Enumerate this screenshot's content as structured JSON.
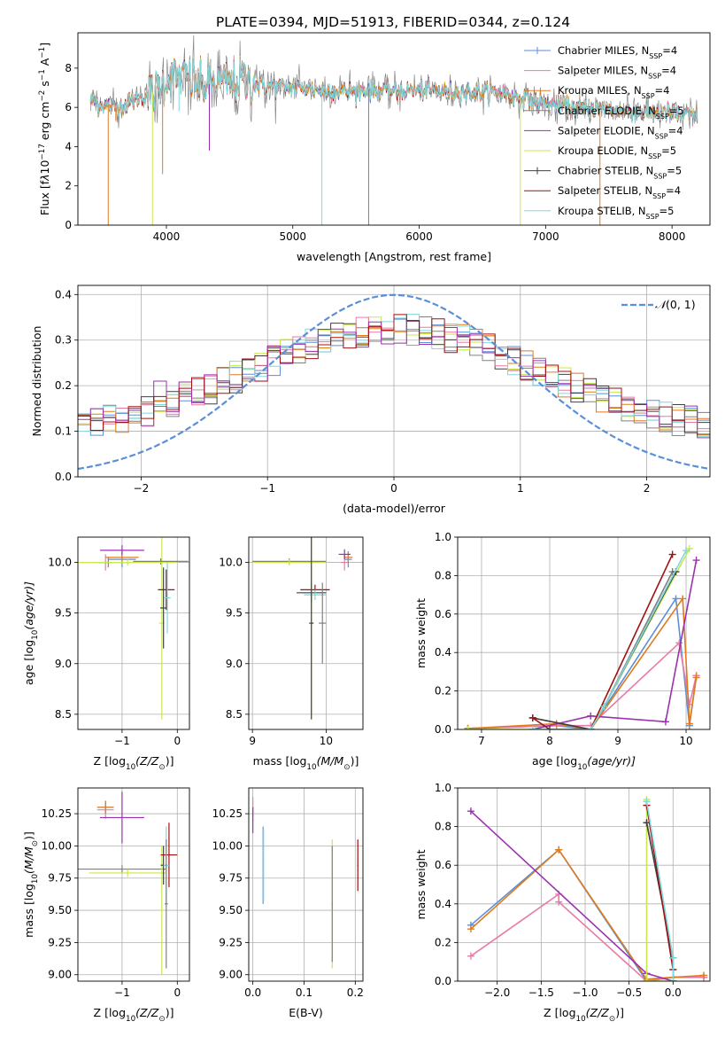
{
  "colors": {
    "c_miles": "#5b8fd8",
    "s_miles": "#e87aa8",
    "k_miles": "#e07b1c",
    "c_elodie": "#808080",
    "s_elodie": "#9b30b0",
    "k_elodie": "#c8e84c",
    "c_stelib": "#404040",
    "s_stelib": "#a01010",
    "k_stelib": "#7fd8dc",
    "normal": "#5b8fd8",
    "grid": "#b0b0b0"
  },
  "chart_data": [
    {
      "id": "spectrum",
      "type": "line",
      "title": "PLATE=0394, MJD=51913, FIBERID=0344, z=0.124",
      "xlabel": "wavelength [Angstrom, rest frame]",
      "ylabel_parts": [
        "Flux [f",
        "λ",
        "10",
        "−17",
        " erg cm",
        "−2",
        " s",
        "−1",
        " A",
        "−1",
        "]"
      ],
      "xlim": [
        3300,
        8300
      ],
      "ylim": [
        0,
        9.8
      ],
      "xticks": [
        4000,
        5000,
        6000,
        7000,
        8000
      ],
      "yticks": [
        0,
        2,
        4,
        6,
        8
      ],
      "grid": false,
      "legend_position": "top-right",
      "series": [
        {
          "name": "Chabrier MILES",
          "nssp": "4",
          "color_key": "c_miles"
        },
        {
          "name": "Salpeter MILES",
          "nssp": "4",
          "color_key": "s_miles"
        },
        {
          "name": "Kroupa MILES",
          "nssp": "4",
          "color_key": "k_miles"
        },
        {
          "name": "Chabrier ELODIE",
          "nssp": "5",
          "color_key": "c_elodie"
        },
        {
          "name": "Salpeter ELODIE",
          "nssp": "4",
          "color_key": "s_elodie"
        },
        {
          "name": "Kroupa ELODIE",
          "nssp": "5",
          "color_key": "k_elodie"
        },
        {
          "name": "Chabrier STELIB",
          "nssp": "5",
          "color_key": "c_stelib"
        },
        {
          "name": "Salpeter STELIB",
          "nssp": "4",
          "color_key": "s_stelib"
        },
        {
          "name": "Kroupa STELIB",
          "nssp": "5",
          "color_key": "k_stelib"
        }
      ],
      "continuum": {
        "x": [
          3400,
          3500,
          3600,
          3700,
          3800,
          3900,
          4000,
          4100,
          4200,
          4300,
          4400,
          4600,
          4800,
          5000,
          5200,
          5400,
          5600,
          5800,
          6000,
          6200,
          6400,
          6600,
          6800,
          7000,
          7200,
          7400,
          7600,
          7800,
          8000,
          8200
        ],
        "y": [
          6.4,
          6.1,
          6.0,
          6.2,
          6.5,
          6.8,
          7.4,
          7.6,
          7.4,
          7.1,
          7.3,
          7.3,
          7.1,
          7.0,
          6.9,
          6.8,
          6.9,
          6.8,
          6.9,
          6.8,
          6.8,
          6.8,
          6.5,
          6.2,
          6.0,
          5.9,
          5.8,
          5.7,
          5.7,
          5.5
        ]
      },
      "absorption_dips": [
        {
          "x": 3540,
          "y": 0.0
        },
        {
          "x": 3600,
          "y": 5.3
        },
        {
          "x": 3890,
          "y": 0.0
        },
        {
          "x": 3970,
          "y": 2.6
        },
        {
          "x": 4100,
          "y": 5.8
        },
        {
          "x": 4340,
          "y": 3.8
        },
        {
          "x": 5230,
          "y": 0.0
        },
        {
          "x": 5600,
          "y": 0.0
        },
        {
          "x": 6800,
          "y": 0.0
        },
        {
          "x": 7430,
          "y": 0.0
        }
      ]
    },
    {
      "id": "residuals",
      "type": "line",
      "xlabel": "(data-model)/error",
      "ylabel": "Normed distribution",
      "xlim": [
        -2.5,
        2.5
      ],
      "ylim": [
        0,
        0.42
      ],
      "xticks": [
        -2,
        -1,
        0,
        1,
        2
      ],
      "yticks": [
        0.0,
        0.1,
        0.2,
        0.3,
        0.4
      ],
      "grid": true,
      "legend_position": "top-right",
      "reference_curve": {
        "name_base": "𝒩",
        "name_args": "(0, 1)",
        "mean": 0,
        "sigma": 1
      },
      "histogram_bins": 50
    },
    {
      "id": "age_vs_Z",
      "type": "scatter",
      "xlabel_parts": [
        "Z [log",
        "10",
        "(Z/Z",
        "⊙",
        ")]"
      ],
      "ylabel_parts": [
        "age  [log",
        "10",
        "(age/yr)]"
      ],
      "xlim": [
        -1.8,
        0.22
      ],
      "ylim": [
        8.35,
        10.25
      ],
      "xticks": [
        -1,
        0
      ],
      "yticks": [
        8.5,
        9.0,
        9.5,
        10.0
      ],
      "grid": true,
      "points": [
        {
          "c": "c_miles",
          "x": -1.0,
          "xerr": 0.25,
          "y": 10.03,
          "yerr": 0.08
        },
        {
          "c": "s_miles",
          "x": -1.3,
          "xerr": 0.12,
          "y": 10.0,
          "yerr": 0.08
        },
        {
          "c": "k_miles",
          "x": -1.0,
          "xerr": 0.3,
          "y": 10.05,
          "yerr": 0.05
        },
        {
          "c": "c_elodie",
          "x": -1.25,
          "xerr": 0.5,
          "y": 10.0,
          "yerr": 0.05
        },
        {
          "c": "s_elodie",
          "x": -1.0,
          "xerr": 0.4,
          "y": 10.12,
          "yerr": 0.05
        },
        {
          "c": "k_elodie",
          "x": -0.28,
          "xerr": 0.05,
          "y": 9.4,
          "yerr": 0.95
        },
        {
          "c": "c_stelib",
          "x": -0.25,
          "xerr": 0.06,
          "y": 9.55,
          "yerr": 0.4
        },
        {
          "c": "s_stelib",
          "x": -0.2,
          "xerr": 0.15,
          "y": 9.73,
          "yerr": 0.2
        },
        {
          "c": "k_stelib",
          "x": -0.18,
          "xerr": 0.06,
          "y": 9.65,
          "yerr": 0.35
        },
        {
          "c": "c_elodie",
          "x": -0.3,
          "xerr": 0.5,
          "y": 10.01,
          "yerr": 0.03
        },
        {
          "c": "k_elodie",
          "x": -0.9,
          "xerr": 0.9,
          "y": 10.0,
          "yerr": 0.03
        }
      ]
    },
    {
      "id": "age_vs_mass",
      "type": "scatter",
      "xlabel_parts": [
        "mass [log",
        "10",
        "(M/M",
        "⊙",
        ")]"
      ],
      "xlim": [
        8.95,
        10.5
      ],
      "ylim": [
        8.35,
        10.25
      ],
      "xticks": [
        9,
        10
      ],
      "yticks": [
        8.5,
        9.0,
        9.5,
        10.0
      ],
      "grid": true,
      "points": [
        {
          "c": "c_miles",
          "x": 10.3,
          "xerr": 0.05,
          "y": 10.03,
          "yerr": 0.08
        },
        {
          "c": "s_miles",
          "x": 10.25,
          "xerr": 0.05,
          "y": 10.0,
          "yerr": 0.08
        },
        {
          "c": "k_miles",
          "x": 10.3,
          "xerr": 0.06,
          "y": 10.05,
          "yerr": 0.05
        },
        {
          "c": "c_elodie",
          "x": 9.5,
          "xerr": 0.5,
          "y": 10.01,
          "yerr": 0.03
        },
        {
          "c": "s_elodie",
          "x": 10.25,
          "xerr": 0.08,
          "y": 10.08,
          "yerr": 0.05
        },
        {
          "c": "k_elodie",
          "x": 9.5,
          "xerr": 0.5,
          "y": 10.0,
          "yerr": 0.03
        },
        {
          "c": "c_stelib",
          "x": 9.8,
          "xerr": 0.2,
          "y": 9.7,
          "yerr": 0.1
        },
        {
          "c": "s_stelib",
          "x": 9.85,
          "xerr": 0.2,
          "y": 9.73,
          "yerr": 0.05
        },
        {
          "c": "k_stelib",
          "x": 9.85,
          "xerr": 0.15,
          "y": 9.68,
          "yerr": 0.05
        },
        {
          "c": "c_elodie",
          "x": 9.95,
          "xerr": 0.05,
          "y": 9.4,
          "yerr": 0.4
        },
        {
          "c": "k_elodie",
          "x": 9.8,
          "xerr": 0.03,
          "y": 9.4,
          "yerr": 0.95
        },
        {
          "c": "c_stelib",
          "x": 9.8,
          "xerr": 0.03,
          "y": 9.4,
          "yerr": 0.95
        }
      ]
    },
    {
      "id": "weight_vs_age",
      "type": "line",
      "xlabel_parts": [
        "age  [log",
        "10",
        "(age/yr)]"
      ],
      "ylabel": "mass weight",
      "xlim": [
        6.65,
        10.35
      ],
      "ylim": [
        0,
        1.0
      ],
      "xticks": [
        7,
        8,
        9,
        10
      ],
      "yticks": [
        0.0,
        0.2,
        0.4,
        0.6,
        0.8,
        1.0
      ],
      "grid": true,
      "series": [
        {
          "c": "c_miles",
          "x": [
            6.8,
            8.1,
            8.6,
            9.85,
            10.05,
            10.15
          ],
          "y": [
            0.005,
            0.02,
            0.0,
            0.68,
            0.02,
            0.28
          ]
        },
        {
          "c": "s_miles",
          "x": [
            6.8,
            8.1,
            8.6,
            9.9,
            10.05,
            10.15
          ],
          "y": [
            0.005,
            0.02,
            0.02,
            0.45,
            0.13,
            0.28
          ]
        },
        {
          "c": "k_miles",
          "x": [
            6.8,
            8.1,
            8.6,
            9.95,
            10.05,
            10.15
          ],
          "y": [
            0.005,
            0.03,
            0.0,
            0.68,
            0.03,
            0.27
          ]
        },
        {
          "c": "c_elodie",
          "x": [
            7.75,
            8.6,
            8.8,
            9.8
          ],
          "y": [
            0.06,
            0.0,
            0.12,
            0.82
          ]
        },
        {
          "c": "s_elodie",
          "x": [
            7.75,
            8.6,
            9.7,
            10.15
          ],
          "y": [
            0.0,
            0.07,
            0.04,
            0.88
          ]
        },
        {
          "c": "k_elodie",
          "x": [
            6.8,
            8.6,
            8.8,
            10.05
          ],
          "y": [
            0.0,
            0.0,
            0.12,
            0.94
          ]
        },
        {
          "c": "c_stelib",
          "x": [
            7.75,
            8.6,
            8.8,
            9.85
          ],
          "y": [
            0.06,
            0.0,
            0.12,
            0.82
          ]
        },
        {
          "c": "s_stelib",
          "x": [
            7.75,
            8.0,
            8.6,
            9.8
          ],
          "y": [
            0.06,
            0.0,
            0.0,
            0.91
          ]
        },
        {
          "c": "k_stelib",
          "x": [
            7.75,
            8.6,
            8.8,
            10.0
          ],
          "y": [
            0.0,
            0.0,
            0.12,
            0.93
          ]
        }
      ]
    },
    {
      "id": "mass_vs_Z",
      "type": "scatter",
      "xlabel_parts": [
        "Z [log",
        "10",
        "(Z/Z",
        "⊙",
        ")]"
      ],
      "ylabel_parts": [
        "mass [log",
        "10",
        "(M/M",
        "⊙",
        ")]"
      ],
      "xlim": [
        -1.8,
        0.22
      ],
      "ylim": [
        8.95,
        10.45
      ],
      "xticks": [
        -1,
        0
      ],
      "yticks": [
        9.0,
        9.25,
        9.5,
        9.75,
        10.0,
        10.25
      ],
      "grid": true,
      "points": [
        {
          "c": "c_miles",
          "x": -1.3,
          "xerr": 0.15,
          "y": 10.3,
          "yerr": 0.05
        },
        {
          "c": "s_miles",
          "x": -1.3,
          "xerr": 0.15,
          "y": 10.28,
          "yerr": 0.07
        },
        {
          "c": "k_miles",
          "x": -1.3,
          "xerr": 0.15,
          "y": 10.3,
          "yerr": 0.05
        },
        {
          "c": "s_elodie",
          "x": -1.0,
          "xerr": 0.4,
          "y": 10.22,
          "yerr": 0.2
        },
        {
          "c": "c_elodie",
          "x": -1.0,
          "xerr": 0.8,
          "y": 9.82,
          "yerr": 0.03
        },
        {
          "c": "k_elodie",
          "x": -0.9,
          "xerr": 0.7,
          "y": 9.79,
          "yerr": 0.03
        },
        {
          "c": "k_elodie",
          "x": -0.28,
          "xerr": 0.05,
          "y": 9.5,
          "yerr": 0.5
        },
        {
          "c": "c_stelib",
          "x": -0.25,
          "xerr": 0.05,
          "y": 9.85,
          "yerr": 0.15
        },
        {
          "c": "s_stelib",
          "x": -0.15,
          "xerr": 0.15,
          "y": 9.93,
          "yerr": 0.25
        },
        {
          "c": "k_stelib",
          "x": -0.2,
          "xerr": 0.05,
          "y": 9.85,
          "yerr": 0.3
        },
        {
          "c": "c_elodie",
          "x": -0.2,
          "xerr": 0.03,
          "y": 9.55,
          "yerr": 0.5
        }
      ]
    },
    {
      "id": "mass_vs_ebv",
      "type": "scatter",
      "xlabel": "E(B-V)",
      "xlim": [
        -0.008,
        0.215
      ],
      "ylim": [
        8.95,
        10.45
      ],
      "xticks": [
        0.0,
        0.1,
        0.2
      ],
      "yticks": [
        9.0,
        9.25,
        9.5,
        9.75,
        10.0,
        10.25
      ],
      "grid": true,
      "points": [
        {
          "c": "s_miles",
          "x": 0.0,
          "xerr": 0.001,
          "y": 10.3,
          "yerr": 0.08
        },
        {
          "c": "s_elodie",
          "x": 0.0,
          "xerr": 0.001,
          "y": 10.2,
          "yerr": 0.1
        },
        {
          "c": "c_miles",
          "x": 0.02,
          "xerr": 0.001,
          "y": 9.85,
          "yerr": 0.3
        },
        {
          "c": "k_stelib",
          "x": 0.021,
          "xerr": 0.001,
          "y": 9.85,
          "yerr": 0.28
        },
        {
          "c": "k_elodie",
          "x": 0.155,
          "xerr": 0.001,
          "y": 9.55,
          "yerr": 0.5
        },
        {
          "c": "c_elodie",
          "x": 0.155,
          "xerr": 0.001,
          "y": 9.55,
          "yerr": 0.45
        },
        {
          "c": "s_stelib",
          "x": 0.205,
          "xerr": 0.001,
          "y": 9.85,
          "yerr": 0.2
        }
      ]
    },
    {
      "id": "weight_vs_Z",
      "type": "line",
      "xlabel_parts": [
        "Z [log",
        "10",
        "(Z/Z",
        "⊙",
        ")]"
      ],
      "ylabel": "mass weight",
      "xlim": [
        -2.45,
        0.42
      ],
      "ylim": [
        0,
        1.0
      ],
      "xticks": [
        -2.0,
        -1.5,
        -1.0,
        -0.5,
        0.0
      ],
      "yticks": [
        0.0,
        0.2,
        0.4,
        0.6,
        0.8,
        1.0
      ],
      "grid": true,
      "series": [
        {
          "c": "c_miles",
          "x": [
            -2.3,
            -1.3,
            -0.3,
            0.0,
            0.35
          ],
          "y": [
            0.29,
            0.68,
            0.0,
            0.02,
            0.02
          ]
        },
        {
          "c": "s_miles",
          "x": [
            -2.3,
            -1.3,
            -1.3,
            -0.3,
            0.0,
            0.35
          ],
          "y": [
            0.13,
            0.45,
            0.41,
            0.0,
            0.02,
            0.02
          ]
        },
        {
          "c": "k_miles",
          "x": [
            -2.3,
            -1.3,
            -0.3,
            0.0,
            0.35
          ],
          "y": [
            0.27,
            0.68,
            0.01,
            0.02,
            0.03
          ]
        },
        {
          "c": "s_elodie",
          "x": [
            -2.3,
            -0.3,
            0.0
          ],
          "y": [
            0.88,
            0.04,
            0.0
          ]
        },
        {
          "c": "c_elodie",
          "x": [
            -0.3,
            0.0,
            0.0
          ],
          "y": [
            0.82,
            0.12,
            0.06
          ]
        },
        {
          "c": "k_elodie",
          "x": [
            -0.3,
            -0.3,
            0.0
          ],
          "y": [
            0.94,
            0.0,
            0.0
          ]
        },
        {
          "c": "c_stelib",
          "x": [
            -0.3,
            0.0,
            0.0
          ],
          "y": [
            0.82,
            0.12,
            0.0
          ]
        },
        {
          "c": "s_stelib",
          "x": [
            -0.3,
            0.0,
            0.0
          ],
          "y": [
            0.91,
            0.06,
            0.0
          ]
        },
        {
          "c": "k_stelib",
          "x": [
            -0.3,
            0.0,
            0.0
          ],
          "y": [
            0.93,
            0.12,
            0.0
          ]
        }
      ]
    }
  ]
}
